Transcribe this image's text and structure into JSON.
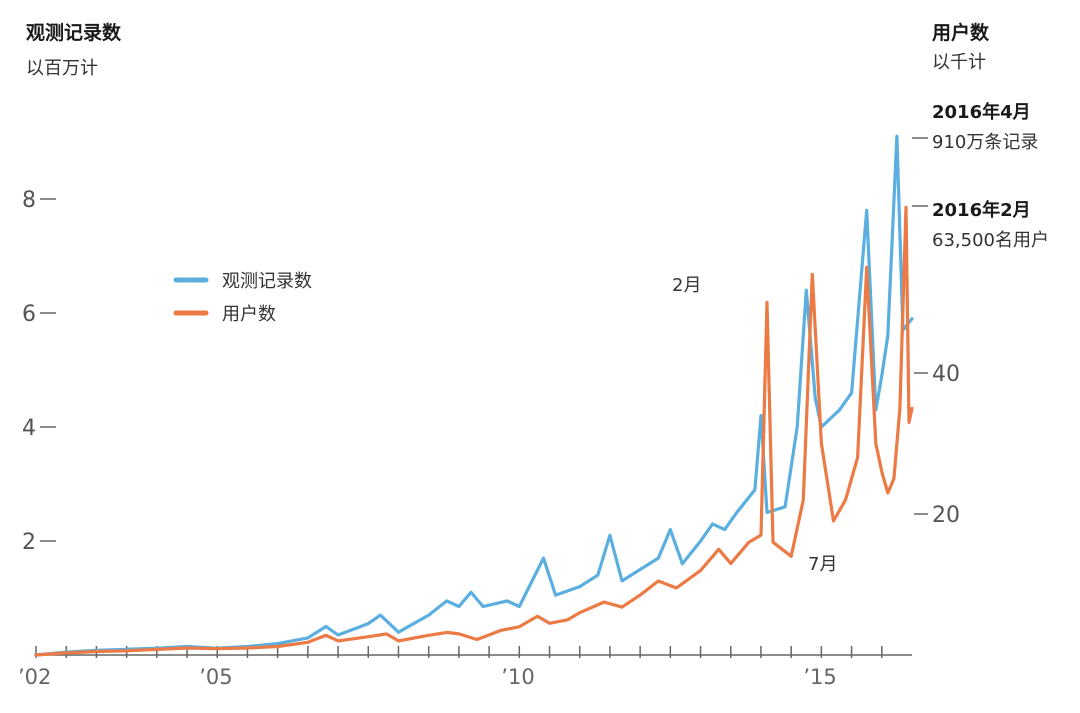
{
  "colors": {
    "observations": "#5aafe0",
    "users": "#ec7a45",
    "axis": "#666666"
  },
  "left_axis": {
    "title": "观测记录数",
    "unit": "以百万计"
  },
  "right_axis": {
    "title": "用户数",
    "unit": "以千计"
  },
  "legend": {
    "observations": "观测记录数",
    "users": "用户数"
  },
  "annotations": {
    "apr2016_title": "2016年4月",
    "apr2016_text": "910万条记录",
    "feb2016_title": "2016年2月",
    "feb2016_text": "63,500名用户",
    "feb_label": "2月",
    "jul_label": "7月"
  },
  "chart_data": {
    "type": "line",
    "x_range": [
      2002.0,
      2016.5
    ],
    "x_tick_labels": [
      "’02",
      "’05",
      "’10",
      "’15"
    ],
    "x_tick_values": [
      2002,
      2005,
      2010,
      2015
    ],
    "y_left": {
      "ticks": [
        2,
        4,
        6,
        8
      ],
      "range": [
        0,
        10
      ]
    },
    "y_right": {
      "ticks": [
        20,
        40
      ],
      "range": [
        0,
        85
      ]
    },
    "series": [
      {
        "name": "观测记录数",
        "axis": "left",
        "points": [
          [
            2002.0,
            0.0
          ],
          [
            2002.5,
            0.05
          ],
          [
            2003.0,
            0.08
          ],
          [
            2003.5,
            0.1
          ],
          [
            2004.0,
            0.12
          ],
          [
            2004.5,
            0.15
          ],
          [
            2005.0,
            0.12
          ],
          [
            2005.5,
            0.15
          ],
          [
            2006.0,
            0.2
          ],
          [
            2006.5,
            0.3
          ],
          [
            2006.8,
            0.5
          ],
          [
            2007.0,
            0.35
          ],
          [
            2007.5,
            0.55
          ],
          [
            2007.7,
            0.7
          ],
          [
            2008.0,
            0.4
          ],
          [
            2008.5,
            0.7
          ],
          [
            2008.8,
            0.95
          ],
          [
            2009.0,
            0.85
          ],
          [
            2009.2,
            1.1
          ],
          [
            2009.4,
            0.85
          ],
          [
            2009.8,
            0.95
          ],
          [
            2010.0,
            0.85
          ],
          [
            2010.4,
            1.7
          ],
          [
            2010.6,
            1.05
          ],
          [
            2011.0,
            1.2
          ],
          [
            2011.3,
            1.4
          ],
          [
            2011.5,
            2.1
          ],
          [
            2011.7,
            1.3
          ],
          [
            2012.0,
            1.5
          ],
          [
            2012.3,
            1.7
          ],
          [
            2012.5,
            2.2
          ],
          [
            2012.7,
            1.6
          ],
          [
            2013.0,
            2.0
          ],
          [
            2013.2,
            2.3
          ],
          [
            2013.4,
            2.2
          ],
          [
            2013.6,
            2.5
          ],
          [
            2013.9,
            2.9
          ],
          [
            2014.0,
            4.2
          ],
          [
            2014.1,
            2.5
          ],
          [
            2014.4,
            2.6
          ],
          [
            2014.6,
            4.0
          ],
          [
            2014.75,
            6.4
          ],
          [
            2014.9,
            4.5
          ],
          [
            2015.0,
            4.0
          ],
          [
            2015.3,
            4.3
          ],
          [
            2015.5,
            4.6
          ],
          [
            2015.75,
            7.8
          ],
          [
            2015.9,
            4.3
          ],
          [
            2016.0,
            4.9
          ],
          [
            2016.1,
            5.6
          ],
          [
            2016.25,
            9.1
          ],
          [
            2016.35,
            5.7
          ],
          [
            2016.5,
            5.9
          ]
        ]
      },
      {
        "name": "用户数",
        "axis": "right",
        "points": [
          [
            2002.0,
            0.0
          ],
          [
            2002.5,
            0.3
          ],
          [
            2003.0,
            0.5
          ],
          [
            2003.5,
            0.6
          ],
          [
            2004.0,
            0.8
          ],
          [
            2004.5,
            1.0
          ],
          [
            2005.0,
            0.9
          ],
          [
            2005.5,
            1.0
          ],
          [
            2006.0,
            1.2
          ],
          [
            2006.5,
            1.8
          ],
          [
            2006.8,
            2.8
          ],
          [
            2007.0,
            2.0
          ],
          [
            2007.5,
            2.6
          ],
          [
            2007.8,
            3.0
          ],
          [
            2008.0,
            2.0
          ],
          [
            2008.5,
            2.8
          ],
          [
            2008.8,
            3.2
          ],
          [
            2009.0,
            3.0
          ],
          [
            2009.3,
            2.2
          ],
          [
            2009.7,
            3.5
          ],
          [
            2010.0,
            4.0
          ],
          [
            2010.3,
            5.5
          ],
          [
            2010.5,
            4.5
          ],
          [
            2010.8,
            5.0
          ],
          [
            2011.0,
            6.0
          ],
          [
            2011.4,
            7.5
          ],
          [
            2011.7,
            6.8
          ],
          [
            2012.0,
            8.5
          ],
          [
            2012.3,
            10.5
          ],
          [
            2012.6,
            9.5
          ],
          [
            2013.0,
            12.0
          ],
          [
            2013.3,
            15.0
          ],
          [
            2013.5,
            13.0
          ],
          [
            2013.8,
            16.0
          ],
          [
            2014.0,
            17.0
          ],
          [
            2014.1,
            50.0
          ],
          [
            2014.2,
            16.0
          ],
          [
            2014.5,
            14.0
          ],
          [
            2014.7,
            22.0
          ],
          [
            2014.85,
            54.0
          ],
          [
            2015.0,
            30.0
          ],
          [
            2015.2,
            19.0
          ],
          [
            2015.4,
            22.0
          ],
          [
            2015.6,
            28.0
          ],
          [
            2015.75,
            55.0
          ],
          [
            2015.9,
            30.0
          ],
          [
            2016.0,
            26.0
          ],
          [
            2016.1,
            23.0
          ],
          [
            2016.2,
            25.0
          ],
          [
            2016.3,
            35.0
          ],
          [
            2016.4,
            63.5
          ],
          [
            2016.45,
            33.0
          ],
          [
            2016.5,
            35.0
          ]
        ]
      }
    ]
  }
}
